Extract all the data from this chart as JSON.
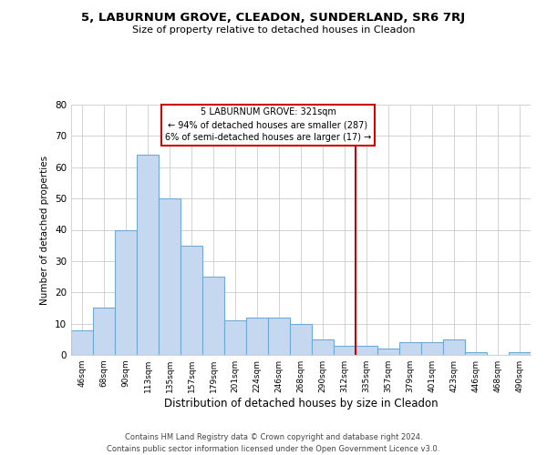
{
  "title": "5, LABURNUM GROVE, CLEADON, SUNDERLAND, SR6 7RJ",
  "subtitle": "Size of property relative to detached houses in Cleadon",
  "xlabel": "Distribution of detached houses by size in Cleadon",
  "ylabel": "Number of detached properties",
  "bar_labels": [
    "46sqm",
    "68sqm",
    "90sqm",
    "113sqm",
    "135sqm",
    "157sqm",
    "179sqm",
    "201sqm",
    "224sqm",
    "246sqm",
    "268sqm",
    "290sqm",
    "312sqm",
    "335sqm",
    "357sqm",
    "379sqm",
    "401sqm",
    "423sqm",
    "446sqm",
    "468sqm",
    "490sqm"
  ],
  "bar_values": [
    8,
    15,
    40,
    64,
    50,
    35,
    25,
    11,
    12,
    12,
    10,
    5,
    3,
    3,
    2,
    4,
    4,
    5,
    1,
    0,
    1
  ],
  "bar_color": "#c5d8f0",
  "bar_edgecolor": "#6faad4",
  "marker_line_color": "#cc0000",
  "annotation_line1": "5 LABURNUM GROVE: 321sqm",
  "annotation_line2": "← 94% of detached houses are smaller (287)",
  "annotation_line3": "6% of semi-detached houses are larger (17) →",
  "annotation_box_color": "#ffffff",
  "annotation_box_edgecolor": "#cc0000",
  "ylim": [
    0,
    80
  ],
  "yticks": [
    0,
    10,
    20,
    30,
    40,
    50,
    60,
    70,
    80
  ],
  "footer_line1": "Contains HM Land Registry data © Crown copyright and database right 2024.",
  "footer_line2": "Contains public sector information licensed under the Open Government Licence v3.0.",
  "background_color": "#ffffff",
  "grid_color": "#cccccc"
}
